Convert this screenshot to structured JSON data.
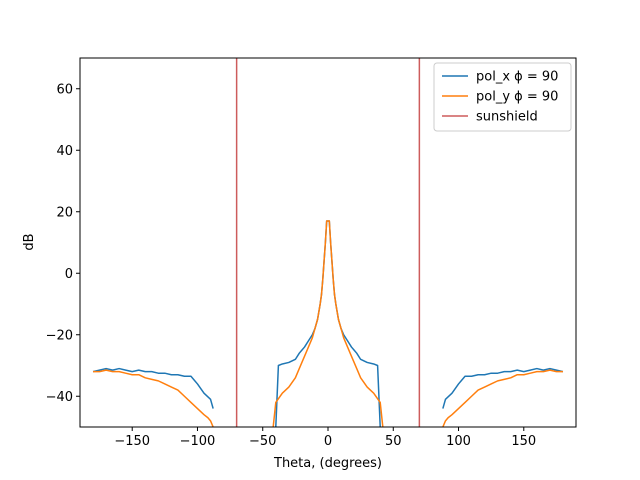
{
  "chart_data": {
    "type": "line",
    "title": "",
    "xlabel": "Theta, (degrees)",
    "ylabel": "dB",
    "xlim": [
      -190,
      190
    ],
    "ylim": [
      -50,
      70
    ],
    "xticks": [
      -150,
      -100,
      -50,
      0,
      50,
      100,
      150
    ],
    "xtick_labels": [
      "−150",
      "−100",
      "−50",
      "0",
      "50",
      "100",
      "150"
    ],
    "yticks": [
      -40,
      -20,
      0,
      20,
      40,
      60
    ],
    "ytick_labels": [
      "−40",
      "−20",
      "0",
      "20",
      "40",
      "60"
    ],
    "grid": false,
    "legend_position": "top-right",
    "series": [
      {
        "name": "pol_x ϕ = 90",
        "color": "#1f77b4",
        "segments": [
          {
            "x": [
              -180,
              -175,
              -170,
              -165,
              -160,
              -155,
              -150,
              -145,
              -140,
              -135,
              -130,
              -125,
              -120,
              -115,
              -110,
              -105,
              -100,
              -95,
              -90,
              -88
            ],
            "y": [
              -32,
              -31.5,
              -31,
              -31.5,
              -31,
              -31.5,
              -32,
              -31.5,
              -32,
              -32,
              -32.5,
              -32.5,
              -33,
              -33,
              -33.5,
              -33.5,
              -36,
              -39,
              -41,
              -44
            ]
          },
          {
            "x": [
              -40,
              -38,
              -35,
              -30,
              -25,
              -22,
              -20,
              -18,
              -15,
              -12,
              -10,
              -8,
              -6,
              -5,
              -4,
              -3,
              -2,
              -1,
              0,
              1,
              2,
              3,
              4,
              5,
              6,
              8,
              10,
              12,
              15,
              18,
              20,
              22,
              25,
              30,
              35,
              38,
              40
            ],
            "y": [
              -50,
              -30,
              -29.5,
              -29,
              -28,
              -26,
              -25,
              -24,
              -22,
              -20,
              -18,
              -15,
              -10,
              -7,
              -2,
              4,
              10,
              17,
              17,
              17,
              10,
              4,
              -2,
              -7,
              -10,
              -15,
              -18,
              -20,
              -22,
              -24,
              -25,
              -26,
              -28,
              -29,
              -29.5,
              -30,
              -50
            ]
          },
          {
            "x": [
              88,
              90,
              95,
              100,
              105,
              110,
              115,
              120,
              125,
              130,
              135,
              140,
              145,
              150,
              155,
              160,
              165,
              170,
              175,
              180
            ],
            "y": [
              -44,
              -41,
              -39,
              -36,
              -33.5,
              -33.5,
              -33,
              -33,
              -32.5,
              -32.5,
              -32,
              -32,
              -31.5,
              -32,
              -31.5,
              -31,
              -31.5,
              -31,
              -31.5,
              -32
            ]
          }
        ]
      },
      {
        "name": "pol_y ϕ = 90",
        "color": "#ff7f0e",
        "segments": [
          {
            "x": [
              -180,
              -175,
              -170,
              -165,
              -160,
              -155,
              -150,
              -145,
              -140,
              -135,
              -130,
              -125,
              -120,
              -115,
              -110,
              -105,
              -100,
              -95,
              -92,
              -90,
              -88
            ],
            "y": [
              -32,
              -32,
              -31.5,
              -32,
              -32,
              -32.5,
              -33,
              -33,
              -34,
              -34.5,
              -35,
              -36,
              -37,
              -38,
              -40,
              -42,
              -44,
              -46,
              -47,
              -48,
              -50
            ]
          },
          {
            "x": [
              -42,
              -40,
              -35,
              -30,
              -25,
              -22,
              -20,
              -18,
              -15,
              -12,
              -10,
              -8,
              -6,
              -5,
              -4,
              -3,
              -2,
              -1,
              0,
              1,
              2,
              3,
              4,
              5,
              6,
              8,
              10,
              12,
              15,
              18,
              20,
              22,
              25,
              30,
              35,
              40,
              42
            ],
            "y": [
              -50,
              -42,
              -39,
              -37,
              -34,
              -31,
              -29,
              -27,
              -24,
              -21,
              -18,
              -15,
              -10,
              -7,
              -2,
              4,
              10,
              17,
              17,
              17,
              10,
              4,
              -2,
              -7,
              -10,
              -15,
              -18,
              -21,
              -24,
              -27,
              -29,
              -31,
              -34,
              -37,
              -39,
              -42,
              -50
            ]
          },
          {
            "x": [
              88,
              90,
              92,
              95,
              100,
              105,
              110,
              115,
              120,
              125,
              130,
              135,
              140,
              145,
              150,
              155,
              160,
              165,
              170,
              175,
              180
            ],
            "y": [
              -50,
              -48,
              -47,
              -46,
              -44,
              -42,
              -40,
              -38,
              -37,
              -36,
              -35,
              -34.5,
              -34,
              -33,
              -33,
              -32.5,
              -32,
              -32,
              -31.5,
              -32,
              -32
            ]
          }
        ]
      },
      {
        "name": "sunshield",
        "color": "#cd5c5c",
        "type": "vline",
        "x": [
          -70,
          70
        ]
      }
    ]
  }
}
